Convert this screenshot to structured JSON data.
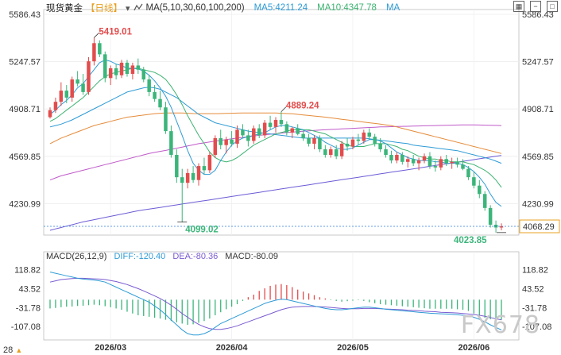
{
  "header": {
    "title": "现货黄金",
    "period": "【日线】",
    "ma_label": "MA(5,10,30,60,100,200)",
    "ma5": "MA5:4211.24",
    "ma10": "MA10:4347.78",
    "ma_tail": "MA"
  },
  "macd_header": {
    "label": "MACD(26,12,9)",
    "diff": "DIFF:-120.40",
    "dea": "DEA:-80.36",
    "macd": "MACD:-80.09"
  },
  "watermark": "FX678",
  "corner_label": "28",
  "colors": {
    "up": "#e24c4c",
    "down": "#3bb57a",
    "ma5": "#2e9bd6",
    "ma10": "#3cb371",
    "ma30": "#2e9bd6",
    "ma60": "#e58b3a",
    "ma100": "#c05bc9",
    "ma200": "#6b5bd6",
    "diff": "#2e9bd6",
    "dea": "#7a5bd1"
  },
  "chart_data": {
    "type": "candlestick",
    "y_ticks": [
      "5586.43",
      "5247.57",
      "4908.71",
      "4569.85",
      "4230.99"
    ],
    "y_range": [
      4040,
      5586.43
    ],
    "current_price": "4068.29",
    "x_ticks": [
      {
        "label": "2026/03",
        "index": 11
      },
      {
        "label": "2026/04",
        "index": 33
      },
      {
        "label": "2026/05",
        "index": 55
      },
      {
        "label": "2026/06",
        "index": 77
      }
    ],
    "annotations": [
      {
        "label": "5419.01",
        "index": 8,
        "value": 5419.01,
        "color": "#e24c4c"
      },
      {
        "label": "4889.24",
        "index": 42,
        "value": 4889.24,
        "color": "#e24c4c"
      },
      {
        "label": "4099.02",
        "index": 24,
        "value": 4099.02,
        "color": "#3bb57a"
      },
      {
        "label": "4023.85",
        "index": 82,
        "value": 4023.85,
        "color": "#3bb57a"
      }
    ],
    "candles": [
      [
        4850,
        4920,
        4840,
        4900
      ],
      [
        4900,
        4990,
        4880,
        4960
      ],
      [
        4960,
        5100,
        4930,
        5040
      ],
      [
        5040,
        5080,
        4950,
        4990
      ],
      [
        4990,
        5140,
        4960,
        5120
      ],
      [
        5120,
        5180,
        5070,
        5090
      ],
      [
        5090,
        5160,
        5010,
        5030
      ],
      [
        5030,
        5280,
        5010,
        5250
      ],
      [
        5250,
        5419.01,
        5220,
        5380
      ],
      [
        5380,
        5400,
        5280,
        5300
      ],
      [
        5300,
        5320,
        5100,
        5130
      ],
      [
        5130,
        5220,
        5080,
        5200
      ],
      [
        5200,
        5230,
        5120,
        5150
      ],
      [
        5150,
        5260,
        5130,
        5240
      ],
      [
        5240,
        5260,
        5140,
        5160
      ],
      [
        5160,
        5240,
        5120,
        5220
      ],
      [
        5220,
        5270,
        5160,
        5190
      ],
      [
        5190,
        5210,
        5100,
        5120
      ],
      [
        5120,
        5150,
        5000,
        5030
      ],
      [
        5030,
        5080,
        4960,
        4980
      ],
      [
        4980,
        5040,
        4900,
        4920
      ],
      [
        4920,
        4960,
        4730,
        4750
      ],
      [
        4750,
        4790,
        4560,
        4580
      ],
      [
        4580,
        4620,
        4380,
        4420
      ],
      [
        4420,
        4480,
        4099.02,
        4380
      ],
      [
        4380,
        4480,
        4340,
        4450
      ],
      [
        4450,
        4500,
        4380,
        4400
      ],
      [
        4400,
        4520,
        4360,
        4500
      ],
      [
        4500,
        4560,
        4440,
        4470
      ],
      [
        4470,
        4600,
        4450,
        4580
      ],
      [
        4580,
        4720,
        4560,
        4700
      ],
      [
        4700,
        4760,
        4620,
        4650
      ],
      [
        4650,
        4710,
        4590,
        4690
      ],
      [
        4690,
        4750,
        4640,
        4660
      ],
      [
        4660,
        4790,
        4630,
        4760
      ],
      [
        4760,
        4800,
        4700,
        4720
      ],
      [
        4720,
        4760,
        4640,
        4680
      ],
      [
        4680,
        4790,
        4660,
        4770
      ],
      [
        4770,
        4800,
        4700,
        4720
      ],
      [
        4720,
        4830,
        4700,
        4810
      ],
      [
        4810,
        4860,
        4760,
        4780
      ],
      [
        4780,
        4850,
        4740,
        4830
      ],
      [
        4830,
        4889.24,
        4780,
        4800
      ],
      [
        4800,
        4820,
        4720,
        4740
      ],
      [
        4740,
        4780,
        4700,
        4770
      ],
      [
        4770,
        4800,
        4720,
        4730
      ],
      [
        4730,
        4760,
        4680,
        4700
      ],
      [
        4700,
        4730,
        4640,
        4660
      ],
      [
        4660,
        4720,
        4620,
        4700
      ],
      [
        4700,
        4720,
        4600,
        4620
      ],
      [
        4620,
        4650,
        4560,
        4580
      ],
      [
        4580,
        4640,
        4560,
        4620
      ],
      [
        4620,
        4650,
        4550,
        4570
      ],
      [
        4570,
        4680,
        4550,
        4660
      ],
      [
        4660,
        4700,
        4610,
        4640
      ],
      [
        4640,
        4710,
        4620,
        4690
      ],
      [
        4690,
        4730,
        4650,
        4680
      ],
      [
        4680,
        4760,
        4660,
        4740
      ],
      [
        4740,
        4770,
        4690,
        4710
      ],
      [
        4710,
        4730,
        4640,
        4660
      ],
      [
        4660,
        4700,
        4600,
        4620
      ],
      [
        4620,
        4650,
        4560,
        4580
      ],
      [
        4580,
        4610,
        4520,
        4540
      ],
      [
        4540,
        4600,
        4520,
        4580
      ],
      [
        4580,
        4600,
        4510,
        4530
      ],
      [
        4530,
        4570,
        4490,
        4550
      ],
      [
        4550,
        4580,
        4500,
        4520
      ],
      [
        4520,
        4560,
        4470,
        4540
      ],
      [
        4540,
        4590,
        4520,
        4570
      ],
      [
        4570,
        4600,
        4480,
        4500
      ],
      [
        4500,
        4540,
        4460,
        4490
      ],
      [
        4490,
        4570,
        4470,
        4550
      ],
      [
        4550,
        4580,
        4500,
        4520
      ],
      [
        4520,
        4560,
        4480,
        4530
      ],
      [
        4530,
        4560,
        4490,
        4510
      ],
      [
        4510,
        4550,
        4470,
        4480
      ],
      [
        4480,
        4500,
        4400,
        4420
      ],
      [
        4420,
        4460,
        4340,
        4360
      ],
      [
        4360,
        4400,
        4270,
        4300
      ],
      [
        4300,
        4320,
        4180,
        4200
      ],
      [
        4200,
        4220,
        4060,
        4080
      ],
      [
        4080,
        4110,
        4023.85,
        4060
      ],
      [
        4060,
        4090,
        4040,
        4068.29
      ]
    ],
    "ma5": [
      4870,
      4900,
      4940,
      4970,
      5010,
      5060,
      5090,
      5140,
      5190,
      5240,
      5260,
      5250,
      5230,
      5220,
      5200,
      5200,
      5195,
      5180,
      5150,
      5110,
      5060,
      5000,
      4920,
      4820,
      4720,
      4610,
      4520,
      4470,
      4440,
      4440,
      4470,
      4540,
      4600,
      4650,
      4680,
      4700,
      4710,
      4720,
      4730,
      4740,
      4760,
      4780,
      4790,
      4790,
      4780,
      4770,
      4760,
      4740,
      4720,
      4700,
      4670,
      4650,
      4630,
      4620,
      4620,
      4630,
      4650,
      4670,
      4690,
      4690,
      4680,
      4660,
      4630,
      4600,
      4580,
      4560,
      4550,
      4540,
      4540,
      4540,
      4530,
      4530,
      4520,
      4520,
      4520,
      4510,
      4490,
      4460,
      4420,
      4370,
      4300,
      4240,
      4211.24
    ],
    "ma10": [
      4820,
      4840,
      4870,
      4900,
      4930,
      4960,
      4990,
      5030,
      5070,
      5110,
      5140,
      5160,
      5170,
      5180,
      5190,
      5200,
      5200,
      5190,
      5180,
      5170,
      5150,
      5120,
      5070,
      5010,
      4940,
      4860,
      4790,
      4720,
      4660,
      4600,
      4560,
      4540,
      4530,
      4540,
      4560,
      4590,
      4620,
      4650,
      4670,
      4690,
      4710,
      4730,
      4740,
      4750,
      4760,
      4760,
      4760,
      4760,
      4750,
      4740,
      4730,
      4710,
      4690,
      4670,
      4650,
      4640,
      4640,
      4640,
      4650,
      4660,
      4660,
      4660,
      4650,
      4640,
      4620,
      4610,
      4590,
      4570,
      4560,
      4550,
      4550,
      4540,
      4540,
      4530,
      4530,
      4530,
      4520,
      4510,
      4490,
      4470,
      4440,
      4400,
      4347.78
    ],
    "ma30": [
      4780,
      4790,
      4800,
      4815,
      4830,
      4850,
      4870,
      4890,
      4910,
      4930,
      4950,
      4970,
      4990,
      5010,
      5030,
      5040,
      5050,
      5060,
      5065,
      5060,
      5050,
      5030,
      5010,
      4990,
      4960,
      4930,
      4900,
      4870,
      4850,
      4830,
      4810,
      4800,
      4790,
      4780,
      4770,
      4760,
      4750,
      4745,
      4740,
      4735,
      4730,
      4725,
      4720,
      4715,
      4710,
      4705,
      4700,
      4700,
      4700,
      4700,
      4700,
      4700,
      4700,
      4700,
      4700,
      4700,
      4700,
      4700,
      4695,
      4690,
      4685,
      4680,
      4675,
      4670,
      4665,
      4660,
      4650,
      4645,
      4640,
      4635,
      4630,
      4625,
      4620,
      4615,
      4610,
      4600,
      4590,
      4580,
      4570,
      4560,
      4550,
      4535,
      4520
    ],
    "ma60": [
      4660,
      4680,
      4700,
      4715,
      4730,
      4745,
      4760,
      4775,
      4790,
      4800,
      4810,
      4820,
      4830,
      4840,
      4850,
      4855,
      4860,
      4865,
      4870,
      4875,
      4878,
      4880,
      4880,
      4880,
      4880,
      4878,
      4876,
      4875,
      4875,
      4875,
      4875,
      4876,
      4877,
      4878,
      4879,
      4880,
      4880,
      4880,
      4880,
      4880,
      4880,
      4880,
      4878,
      4876,
      4874,
      4870,
      4866,
      4862,
      4858,
      4855,
      4850,
      4845,
      4840,
      4835,
      4830,
      4825,
      4820,
      4815,
      4810,
      4805,
      4800,
      4795,
      4790,
      4780,
      4770,
      4760,
      4750,
      4740,
      4730,
      4720,
      4710,
      4700,
      4690,
      4680,
      4670,
      4660,
      4650,
      4640,
      4630,
      4620,
      4610,
      4600,
      4590
    ],
    "ma100": [
      4400,
      4415,
      4430,
      4440,
      4450,
      4460,
      4470,
      4480,
      4490,
      4500,
      4510,
      4520,
      4530,
      4540,
      4550,
      4560,
      4570,
      4580,
      4590,
      4598,
      4605,
      4612,
      4620,
      4628,
      4636,
      4644,
      4652,
      4660,
      4666,
      4672,
      4678,
      4684,
      4690,
      4695,
      4700,
      4705,
      4710,
      4715,
      4720,
      4724,
      4728,
      4732,
      4736,
      4740,
      4743,
      4746,
      4749,
      4752,
      4755,
      4758,
      4760,
      4762,
      4764,
      4766,
      4768,
      4770,
      4772,
      4774,
      4776,
      4778,
      4780,
      4781,
      4782,
      4783,
      4784,
      4785,
      4786,
      4787,
      4788,
      4789,
      4790,
      4791,
      4792,
      4793,
      4794,
      4795,
      4795,
      4795,
      4794,
      4793,
      4792,
      4791,
      4790
    ],
    "ma200": [
      4040,
      4050,
      4060,
      4070,
      4080,
      4090,
      4100,
      4108,
      4116,
      4124,
      4132,
      4140,
      4148,
      4156,
      4164,
      4172,
      4180,
      4186,
      4192,
      4198,
      4204,
      4210,
      4216,
      4222,
      4228,
      4234,
      4240,
      4246,
      4252,
      4258,
      4264,
      4270,
      4276,
      4282,
      4288,
      4294,
      4300,
      4306,
      4312,
      4318,
      4324,
      4330,
      4336,
      4342,
      4348,
      4354,
      4360,
      4366,
      4372,
      4378,
      4384,
      4390,
      4396,
      4402,
      4408,
      4414,
      4420,
      4426,
      4432,
      4438,
      4444,
      4450,
      4456,
      4462,
      4468,
      4474,
      4480,
      4486,
      4492,
      4498,
      4504,
      4510,
      4516,
      4522,
      4528,
      4534,
      4540,
      4546,
      4552,
      4558,
      4564,
      4570,
      4576
    ],
    "macd_ticks": [
      "118.82",
      "43.52",
      "-31.78",
      "-107.08"
    ],
    "macd_range": [
      -160,
      140
    ],
    "diff": [
      110,
      105,
      100,
      95,
      90,
      85,
      82,
      80,
      78,
      75,
      70,
      60,
      50,
      40,
      30,
      20,
      10,
      0,
      -10,
      -25,
      -40,
      -60,
      -80,
      -100,
      -120,
      -135,
      -140,
      -140,
      -135,
      -125,
      -110,
      -95,
      -85,
      -75,
      -65,
      -55,
      -45,
      -35,
      -25,
      -15,
      -8,
      -2,
      2,
      0,
      -5,
      -10,
      -15,
      -20,
      -25,
      -30,
      -35,
      -38,
      -40,
      -40,
      -38,
      -35,
      -32,
      -30,
      -30,
      -32,
      -35,
      -38,
      -40,
      -42,
      -44,
      -46,
      -48,
      -50,
      -52,
      -54,
      -55,
      -56,
      -57,
      -58,
      -60,
      -62,
      -65,
      -70,
      -78,
      -88,
      -100,
      -110,
      -120.4
    ],
    "dea": [
      70,
      75,
      80,
      82,
      84,
      85,
      85,
      84,
      83,
      82,
      80,
      76,
      72,
      66,
      60,
      52,
      44,
      35,
      25,
      15,
      5,
      -8,
      -22,
      -38,
      -55,
      -70,
      -85,
      -98,
      -108,
      -115,
      -118,
      -118,
      -115,
      -110,
      -104,
      -96,
      -88,
      -80,
      -72,
      -64,
      -56,
      -48,
      -40,
      -34,
      -30,
      -28,
      -27,
      -27,
      -27,
      -28,
      -29,
      -31,
      -33,
      -35,
      -36,
      -36,
      -36,
      -35,
      -35,
      -35,
      -36,
      -37,
      -38,
      -39,
      -40,
      -42,
      -43,
      -44,
      -46,
      -47,
      -48,
      -50,
      -51,
      -52,
      -53,
      -55,
      -57,
      -59,
      -62,
      -66,
      -71,
      -76,
      -80.36
    ],
    "macd": [
      -35,
      -33,
      -30,
      -28,
      -27,
      -25,
      -24,
      -22,
      -20,
      -22,
      -26,
      -30,
      -35,
      -40,
      -48,
      -55,
      -62,
      -65,
      -68,
      -72,
      -75,
      -80,
      -85,
      -90,
      -95,
      -100,
      -98,
      -92,
      -85,
      -75,
      -62,
      -50,
      -38,
      -28,
      -18,
      -5,
      10,
      20,
      35,
      45,
      55,
      60,
      62,
      58,
      50,
      40,
      32,
      25,
      18,
      10,
      5,
      -2,
      -5,
      -8,
      -6,
      -4,
      -2,
      -5,
      -10,
      -14,
      -18,
      -20,
      -22,
      -24,
      -26,
      -28,
      -30,
      -32,
      -34,
      -36,
      -36,
      -36,
      -36,
      -36,
      -38,
      -40,
      -45,
      -55,
      -65,
      -72,
      -78,
      -80,
      -80.09
    ]
  }
}
